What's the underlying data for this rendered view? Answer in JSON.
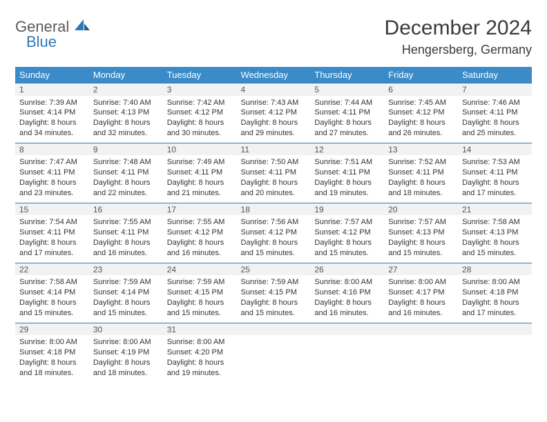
{
  "brand": {
    "word1": "General",
    "word2": "Blue"
  },
  "title": "December 2024",
  "location": "Hengersberg, Germany",
  "colors": {
    "header_bg": "#3b8bc8",
    "header_text": "#ffffff",
    "row_divider": "#2f78b7",
    "daynum_bg": "#f1f2f3",
    "body_text": "#333333",
    "logo_gray": "#5a5a5a",
    "logo_blue": "#2f78b7"
  },
  "day_headers": [
    "Sunday",
    "Monday",
    "Tuesday",
    "Wednesday",
    "Thursday",
    "Friday",
    "Saturday"
  ],
  "weeks": [
    [
      {
        "n": "1",
        "sr": "7:39 AM",
        "ss": "4:14 PM",
        "dl": "8 hours and 34 minutes."
      },
      {
        "n": "2",
        "sr": "7:40 AM",
        "ss": "4:13 PM",
        "dl": "8 hours and 32 minutes."
      },
      {
        "n": "3",
        "sr": "7:42 AM",
        "ss": "4:12 PM",
        "dl": "8 hours and 30 minutes."
      },
      {
        "n": "4",
        "sr": "7:43 AM",
        "ss": "4:12 PM",
        "dl": "8 hours and 29 minutes."
      },
      {
        "n": "5",
        "sr": "7:44 AM",
        "ss": "4:11 PM",
        "dl": "8 hours and 27 minutes."
      },
      {
        "n": "6",
        "sr": "7:45 AM",
        "ss": "4:12 PM",
        "dl": "8 hours and 26 minutes."
      },
      {
        "n": "7",
        "sr": "7:46 AM",
        "ss": "4:11 PM",
        "dl": "8 hours and 25 minutes."
      }
    ],
    [
      {
        "n": "8",
        "sr": "7:47 AM",
        "ss": "4:11 PM",
        "dl": "8 hours and 23 minutes."
      },
      {
        "n": "9",
        "sr": "7:48 AM",
        "ss": "4:11 PM",
        "dl": "8 hours and 22 minutes."
      },
      {
        "n": "10",
        "sr": "7:49 AM",
        "ss": "4:11 PM",
        "dl": "8 hours and 21 minutes."
      },
      {
        "n": "11",
        "sr": "7:50 AM",
        "ss": "4:11 PM",
        "dl": "8 hours and 20 minutes."
      },
      {
        "n": "12",
        "sr": "7:51 AM",
        "ss": "4:11 PM",
        "dl": "8 hours and 19 minutes."
      },
      {
        "n": "13",
        "sr": "7:52 AM",
        "ss": "4:11 PM",
        "dl": "8 hours and 18 minutes."
      },
      {
        "n": "14",
        "sr": "7:53 AM",
        "ss": "4:11 PM",
        "dl": "8 hours and 17 minutes."
      }
    ],
    [
      {
        "n": "15",
        "sr": "7:54 AM",
        "ss": "4:11 PM",
        "dl": "8 hours and 17 minutes."
      },
      {
        "n": "16",
        "sr": "7:55 AM",
        "ss": "4:11 PM",
        "dl": "8 hours and 16 minutes."
      },
      {
        "n": "17",
        "sr": "7:55 AM",
        "ss": "4:12 PM",
        "dl": "8 hours and 16 minutes."
      },
      {
        "n": "18",
        "sr": "7:56 AM",
        "ss": "4:12 PM",
        "dl": "8 hours and 15 minutes."
      },
      {
        "n": "19",
        "sr": "7:57 AM",
        "ss": "4:12 PM",
        "dl": "8 hours and 15 minutes."
      },
      {
        "n": "20",
        "sr": "7:57 AM",
        "ss": "4:13 PM",
        "dl": "8 hours and 15 minutes."
      },
      {
        "n": "21",
        "sr": "7:58 AM",
        "ss": "4:13 PM",
        "dl": "8 hours and 15 minutes."
      }
    ],
    [
      {
        "n": "22",
        "sr": "7:58 AM",
        "ss": "4:14 PM",
        "dl": "8 hours and 15 minutes."
      },
      {
        "n": "23",
        "sr": "7:59 AM",
        "ss": "4:14 PM",
        "dl": "8 hours and 15 minutes."
      },
      {
        "n": "24",
        "sr": "7:59 AM",
        "ss": "4:15 PM",
        "dl": "8 hours and 15 minutes."
      },
      {
        "n": "25",
        "sr": "7:59 AM",
        "ss": "4:15 PM",
        "dl": "8 hours and 15 minutes."
      },
      {
        "n": "26",
        "sr": "8:00 AM",
        "ss": "4:16 PM",
        "dl": "8 hours and 16 minutes."
      },
      {
        "n": "27",
        "sr": "8:00 AM",
        "ss": "4:17 PM",
        "dl": "8 hours and 16 minutes."
      },
      {
        "n": "28",
        "sr": "8:00 AM",
        "ss": "4:18 PM",
        "dl": "8 hours and 17 minutes."
      }
    ],
    [
      {
        "n": "29",
        "sr": "8:00 AM",
        "ss": "4:18 PM",
        "dl": "8 hours and 18 minutes."
      },
      {
        "n": "30",
        "sr": "8:00 AM",
        "ss": "4:19 PM",
        "dl": "8 hours and 18 minutes."
      },
      {
        "n": "31",
        "sr": "8:00 AM",
        "ss": "4:20 PM",
        "dl": "8 hours and 19 minutes."
      },
      null,
      null,
      null,
      null
    ]
  ],
  "labels": {
    "sunrise": "Sunrise:",
    "sunset": "Sunset:",
    "daylight": "Daylight:"
  }
}
